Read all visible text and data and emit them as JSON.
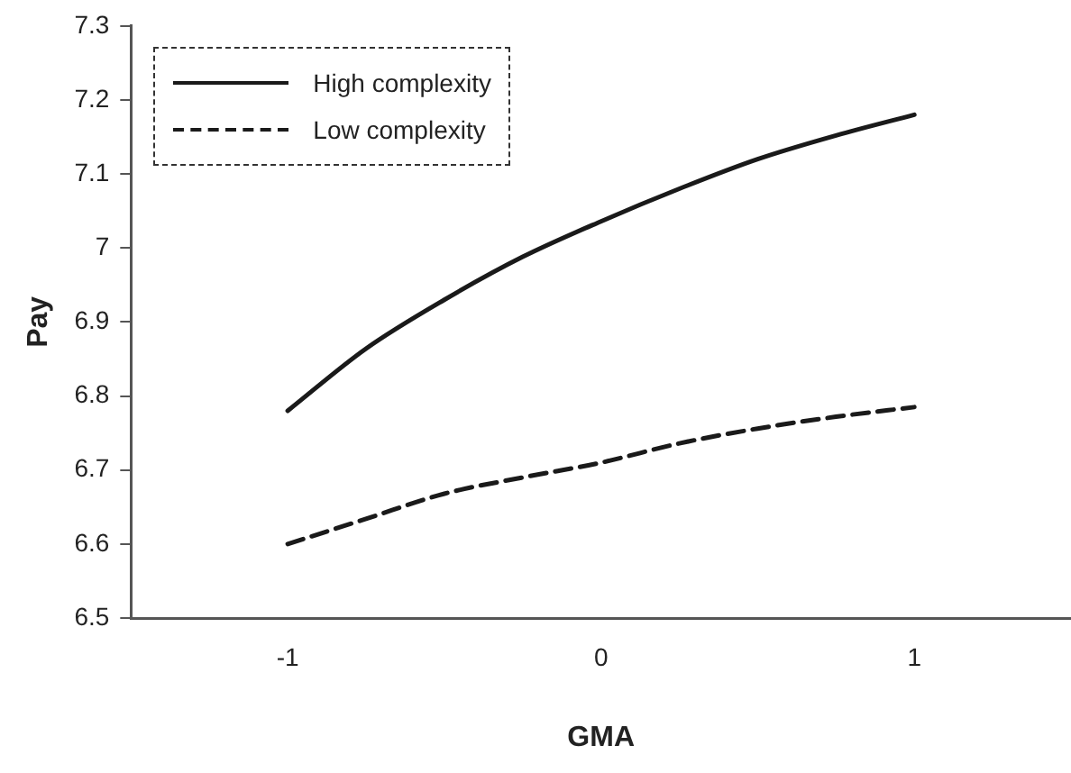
{
  "chart_data": {
    "type": "line",
    "xlabel": "GMA",
    "ylabel": "Pay",
    "xlim": [
      -1.5,
      1.5
    ],
    "xticks": [
      -1,
      0,
      1
    ],
    "ylim": [
      6.5,
      7.3
    ],
    "yticks": [
      6.5,
      6.6,
      6.7,
      6.8,
      6.9,
      7,
      7.1,
      7.2,
      7.3
    ],
    "grid": false,
    "legend": "top left",
    "marker": "none",
    "x": [
      -1,
      -0.75,
      -0.5,
      -0.25,
      0,
      0.25,
      0.5,
      0.75,
      1
    ],
    "series": [
      {
        "name": "High complexity",
        "color": "#1a1a1a",
        "line_style": "solid",
        "values": [
          6.78,
          6.864,
          6.93,
          6.988,
          7.036,
          7.08,
          7.12,
          7.152,
          7.18
        ]
      },
      {
        "name": "Low complexity",
        "color": "#1a1a1a",
        "line_style": "dashed",
        "values": [
          6.6,
          6.634,
          6.668,
          6.69,
          6.71,
          6.736,
          6.756,
          6.772,
          6.785
        ]
      }
    ]
  }
}
